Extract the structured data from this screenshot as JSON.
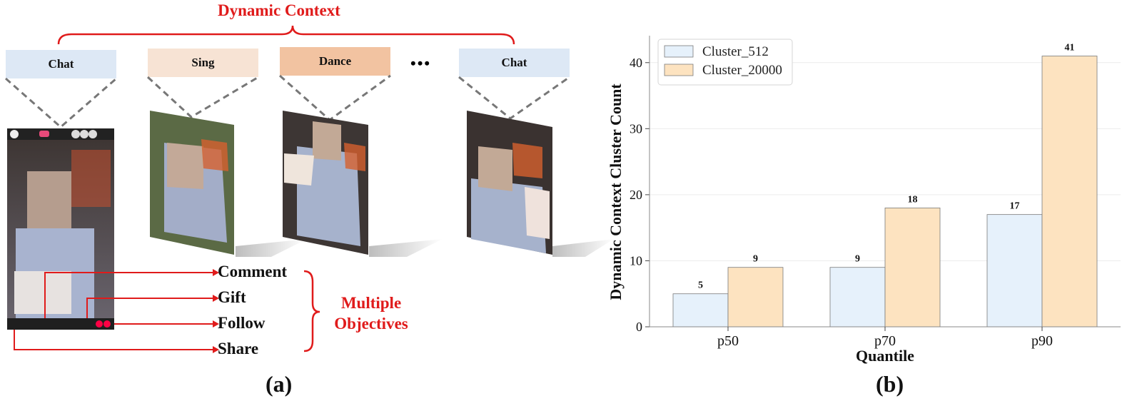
{
  "panel_a": {
    "title": "Dynamic Context",
    "contexts": [
      "Chat",
      "Sing",
      "Dance",
      "Chat"
    ],
    "ellipsis": "•••",
    "objectives": [
      "Comment",
      "Gift",
      "Follow",
      "Share"
    ],
    "objectives_label_line1": "Multiple",
    "objectives_label_line2": "Objectives",
    "label": "(a)",
    "colors": {
      "chat": "#dde8f5",
      "sing": "#f7e3d4",
      "dance": "#f2c3a1",
      "accent": "#e01b1b"
    }
  },
  "panel_b": {
    "label": "(b)"
  },
  "chart_data": {
    "type": "bar",
    "categories": [
      "p50",
      "p70",
      "p90"
    ],
    "series": [
      {
        "name": "Cluster_512",
        "values": [
          5,
          9,
          17
        ],
        "color": "#e6f1fb"
      },
      {
        "name": "Cluster_20000",
        "values": [
          9,
          18,
          41
        ],
        "color": "#fde3c0"
      }
    ],
    "data_labels": [
      [
        "5",
        "9",
        "17"
      ],
      [
        "9",
        "18",
        "41"
      ]
    ],
    "xlabel": "Quantile",
    "ylabel": "Dynamic Context Cluster Count",
    "yticks": [
      0,
      10,
      20,
      30,
      40
    ],
    "ylim": [
      0,
      43
    ],
    "grid": true,
    "legend_position": "top-left"
  }
}
